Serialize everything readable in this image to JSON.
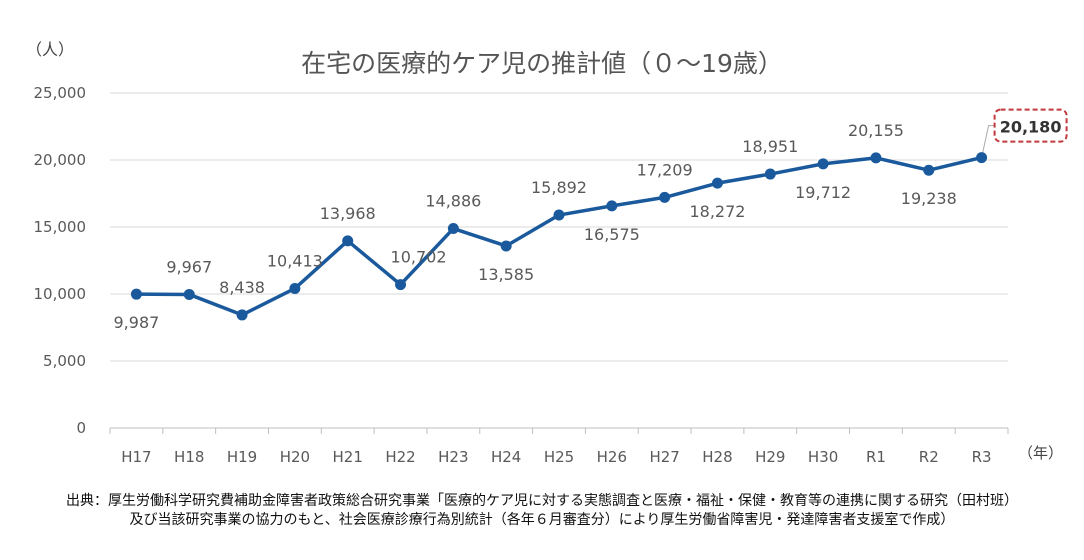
{
  "chart_data": {
    "type": "line",
    "title": "在宅の医療的ケア児の推計値（０～19歳）",
    "ylabel": "（人）",
    "xlabel": "（年）",
    "categories": [
      "H17",
      "H18",
      "H19",
      "H20",
      "H21",
      "H22",
      "H23",
      "H24",
      "H25",
      "H26",
      "H27",
      "H28",
      "H29",
      "H30",
      "R1",
      "R2",
      "R3"
    ],
    "series": [
      {
        "values": [
          9987,
          9967,
          8438,
          10413,
          13968,
          10702,
          14886,
          13585,
          15892,
          16575,
          17209,
          18272,
          18951,
          19712,
          20155,
          19238,
          20180
        ]
      }
    ],
    "data_labels": [
      "9,987",
      "9,967",
      "8,438",
      "10,413",
      "13,968",
      "10,702",
      "14,886",
      "13,585",
      "15,892",
      "16,575",
      "17,209",
      "18,272",
      "18,951",
      "19,712",
      "20,155",
      "19,238",
      "20,180"
    ],
    "yticks": [
      "0",
      "5,000",
      "10,000",
      "15,000",
      "20,000",
      "25,000"
    ],
    "ylim": [
      0,
      25000
    ],
    "grid": true,
    "highlight": "R3",
    "colors": {
      "line": "#1a5a9c",
      "highlight_border": "#c0393b",
      "grid": "#d9d9d9"
    }
  },
  "source": {
    "line1": "出典：厚生労働科学研究費補助金障害者政策総合研究事業「医療的ケア児に対する実態調査と医療・福祉・保健・教育等の連携に関する研究（田村班）",
    "line2": "及び当該研究事業の協力のもと、社会医療診療行為別統計（各年６月審査分）により厚生労働省障害児・発達障害者支援室で作成）"
  }
}
